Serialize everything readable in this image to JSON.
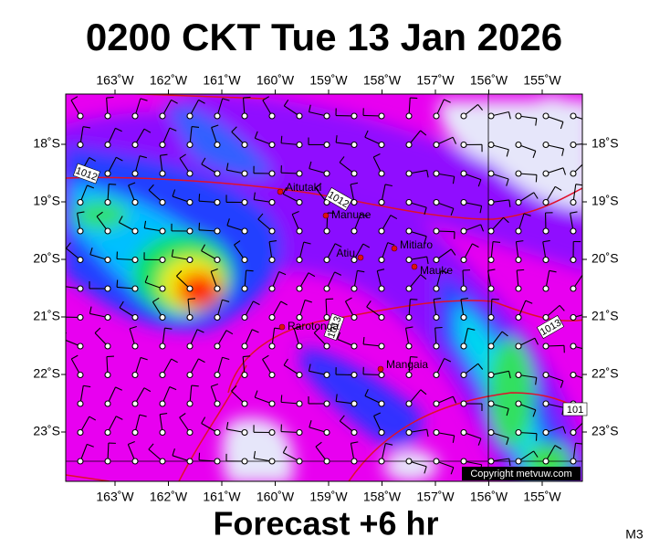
{
  "header": {
    "title": "0200 CKT Tue 13 Jan 2026"
  },
  "footer": {
    "forecast": "Forecast +6 hr",
    "code": "M3"
  },
  "map": {
    "longitude_labels": [
      "163˚W",
      "162˚W",
      "161˚W",
      "160˚W",
      "159˚W",
      "158˚W",
      "157˚W",
      "156˚W",
      "155˚W"
    ],
    "latitude_labels": [
      "18˚S",
      "19˚S",
      "20˚S",
      "21˚S",
      "22˚S",
      "23˚S"
    ],
    "islands": [
      "Aitutaki",
      "Manuae",
      "Mitiaro",
      "Atiu",
      "Mauke",
      "Rarotonga",
      "Mangaia"
    ],
    "isobar_labels": [
      "1012",
      "1012",
      "1013",
      "1013",
      "101"
    ],
    "copyright": "Copyright metvuw.com"
  }
}
